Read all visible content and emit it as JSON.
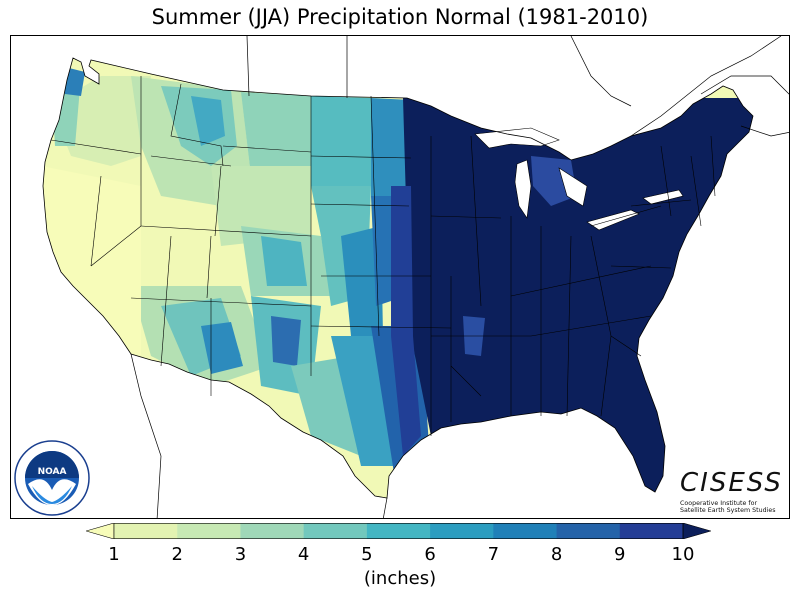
{
  "title": "Summer (JJA) Precipitation Normal (1981-2010)",
  "map": {
    "region": "Contiguous United States",
    "variable": "precipitation",
    "season": "summer (JJA)",
    "period": "1981-2010"
  },
  "colorbar": {
    "label": "(inches)",
    "ticks": [
      "1",
      "2",
      "3",
      "4",
      "5",
      "6",
      "7",
      "8",
      "9",
      "10"
    ],
    "extend": "both",
    "colors": [
      "#f7fcb9",
      "#e3f3b2",
      "#c7e9b4",
      "#9fd8b8",
      "#72c8bd",
      "#43b6c3",
      "#2b9dc0",
      "#2080b8",
      "#2463a9",
      "#243d96",
      "#0c1f5b"
    ]
  },
  "logos": {
    "left": {
      "name": "NOAA",
      "ring_text": "NATIONAL OCEANIC AND ATMOSPHERIC ADMINISTRATION",
      "bottom_text": "U.S. DEPARTMENT OF COMMERCE"
    },
    "right": {
      "name": "CISESS",
      "subtitle_line1": "Cooperative Institute for",
      "subtitle_line2": "Satellite Earth System Studies"
    }
  }
}
